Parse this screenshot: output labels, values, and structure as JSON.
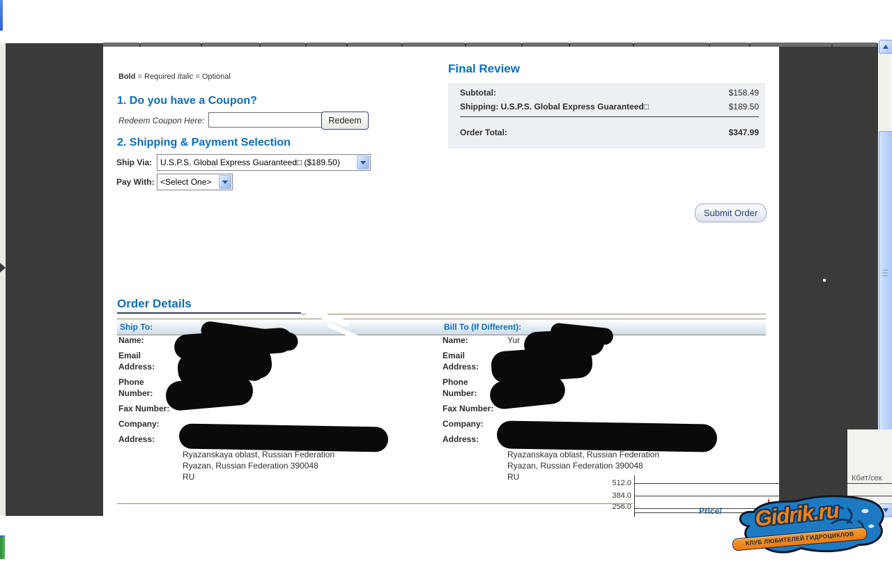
{
  "legend": {
    "bold_word": "Bold",
    "required_text": "= Required",
    "italic_word": "Italic",
    "optional_text": "= Optional"
  },
  "coupon": {
    "heading": "1. Do you have a Coupon?",
    "redeem_label": "Redeem Coupon Here:",
    "input_value": "",
    "redeem_button_label": "Redeem"
  },
  "shipping_payment": {
    "heading": "2. Shipping & Payment Selection",
    "ship_via_label": "Ship Via:",
    "ship_via_selected": "U.S.P.S. Global Express Guaranteed□ ($189.50)",
    "pay_with_label": "Pay With:",
    "pay_with_selected": "<Select One>"
  },
  "final_review": {
    "heading": "Final Review",
    "subtotal_label": "Subtotal:",
    "subtotal_value": "$158.49",
    "shipping_label": "Shipping: U.S.P.S. Global Express Guaranteed□",
    "shipping_value": "$189.50",
    "total_label": "Order Total:",
    "total_value": "$347.99"
  },
  "submit_order_label": "Submit Order",
  "order_details": {
    "heading": "Order Details",
    "ship_to_header": "Ship To:",
    "bill_to_header": "Bill To (If Different):",
    "field_labels": {
      "name": "Name:",
      "email_line1": "Email",
      "email_line2": "Address:",
      "phone_line1": "Phone",
      "phone_line2": "Number:",
      "fax": "Fax Number:",
      "company": "Company:",
      "address": "Address:"
    },
    "ship_to": {
      "address_lines": [
        "Ryazanskaya oblast, Russian Federation",
        "Ryazan, Russian Federation 390048",
        "RU"
      ]
    },
    "bill_to": {
      "name_visible": "Yur",
      "address_lines": [
        "Ryazanskaya oblast, Russian Federation",
        "Ryazan, Russian Federation 390048",
        "RU"
      ]
    },
    "next_column_header": "Price/"
  },
  "overlay_meter": {
    "type": "line",
    "unit": "Кбит/сек",
    "tick_labels": [
      "512.0",
      "384.0",
      "256.0"
    ],
    "series_color": "#cc1111",
    "note": "network speed meter overlay with small red traffic spikes near baseline"
  },
  "watermark": {
    "name": "Gidrik.ru",
    "tagline": "КЛУБ ЛЮБИТЕЛЕЙ ГИДРОЦИКЛОВ"
  },
  "colors": {
    "heading_blue": "#0c6db6",
    "frame_dark": "#3a3a3a",
    "tan_line": "#948b5f",
    "review_box_bg": "#edf0f2",
    "spike_red": "#cc1111"
  },
  "layout_hints": {
    "tab_segment_widths": [
      52,
      86,
      82,
      64,
      57,
      77,
      89,
      79,
      66,
      90,
      107,
      56,
      116,
      63
    ]
  }
}
